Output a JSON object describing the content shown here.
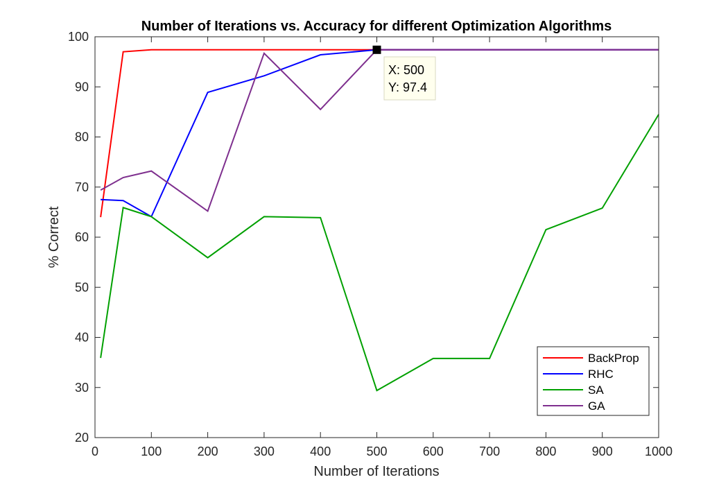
{
  "chart_data": {
    "type": "line",
    "title": "Number of Iterations vs. Accuracy for different Optimization Algorithms",
    "xlabel": "Number of Iterations",
    "ylabel": "% Correct",
    "xlim": [
      0,
      1000
    ],
    "ylim": [
      20,
      100
    ],
    "xticks": [
      0,
      100,
      200,
      300,
      400,
      500,
      600,
      700,
      800,
      900,
      1000
    ],
    "yticks": [
      20,
      30,
      40,
      50,
      60,
      70,
      80,
      90,
      100
    ],
    "grid": false,
    "legend_position": "bottom-right",
    "series": [
      {
        "name": "BackProp",
        "color": "#ff0000",
        "x": [
          10,
          50,
          100,
          200,
          300,
          400,
          500,
          600,
          700,
          800,
          900,
          1000
        ],
        "y": [
          64,
          97,
          97.4,
          97.4,
          97.4,
          97.4,
          97.4,
          97.4,
          97.4,
          97.4,
          97.4,
          97.4
        ]
      },
      {
        "name": "RHC",
        "color": "#0000ff",
        "x": [
          10,
          50,
          100,
          200,
          300,
          400,
          500,
          600,
          700,
          800,
          900,
          1000
        ],
        "y": [
          67.5,
          67.3,
          64.1,
          88.9,
          92.2,
          96.4,
          97.4,
          97.4,
          97.4,
          97.4,
          97.4,
          97.4
        ]
      },
      {
        "name": "SA",
        "color": "#00a000",
        "x": [
          10,
          50,
          100,
          200,
          300,
          400,
          500,
          600,
          700,
          800,
          900,
          1000
        ],
        "y": [
          35.9,
          65.9,
          64.1,
          55.9,
          64.1,
          63.9,
          29.4,
          35.8,
          35.8,
          61.5,
          65.8,
          84.5
        ]
      },
      {
        "name": "GA",
        "color": "#7e2f8e",
        "x": [
          10,
          50,
          100,
          200,
          300,
          400,
          500,
          600,
          700,
          800,
          900,
          1000
        ],
        "y": [
          69.4,
          71.9,
          73.2,
          65.2,
          96.7,
          85.5,
          97.4,
          97.4,
          97.4,
          97.4,
          97.4,
          97.4
        ]
      }
    ],
    "datatip": {
      "x": 500,
      "y": 97.4,
      "x_text": "X: 500",
      "y_text": "Y: 97.4"
    }
  }
}
